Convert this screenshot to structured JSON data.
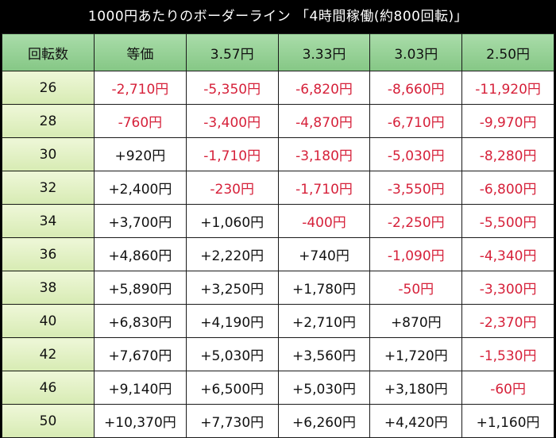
{
  "title": "1000円あたりのボーダーライン 「4時間稼働(約800回転)」",
  "colors": {
    "header_bg": "#98d298",
    "rotation_col_bg": "#e3f1c4",
    "negative": "#d6213a",
    "positive": "#111111"
  },
  "headers": [
    "回転数",
    "等価",
    "3.57円",
    "3.33円",
    "3.03円",
    "2.50円"
  ],
  "rows": [
    {
      "rot": "26",
      "cells": [
        "-2,710円",
        "-5,350円",
        "-6,820円",
        "-8,660円",
        "-11,920円"
      ]
    },
    {
      "rot": "28",
      "cells": [
        "-760円",
        "-3,400円",
        "-4,870円",
        "-6,710円",
        "-9,970円"
      ]
    },
    {
      "rot": "30",
      "cells": [
        "+920円",
        "-1,710円",
        "-3,180円",
        "-5,030円",
        "-8,280円"
      ]
    },
    {
      "rot": "32",
      "cells": [
        "+2,400円",
        "-230円",
        "-1,710円",
        "-3,550円",
        "-6,800円"
      ]
    },
    {
      "rot": "34",
      "cells": [
        "+3,700円",
        "+1,060円",
        "-400円",
        "-2,250円",
        "-5,500円"
      ]
    },
    {
      "rot": "36",
      "cells": [
        "+4,860円",
        "+2,220円",
        "+740円",
        "-1,090円",
        "-4,340円"
      ]
    },
    {
      "rot": "38",
      "cells": [
        "+5,890円",
        "+3,250円",
        "+1,780円",
        "-50円",
        "-3,300円"
      ]
    },
    {
      "rot": "40",
      "cells": [
        "+6,830円",
        "+4,190円",
        "+2,710円",
        "+870円",
        "-2,370円"
      ]
    },
    {
      "rot": "42",
      "cells": [
        "+7,670円",
        "+5,030円",
        "+3,560円",
        "+1,720円",
        "-1,530円"
      ]
    },
    {
      "rot": "46",
      "cells": [
        "+9,140円",
        "+6,500円",
        "+5,030円",
        "+3,180円",
        "-60円"
      ]
    },
    {
      "rot": "50",
      "cells": [
        "+10,370円",
        "+7,730円",
        "+6,260円",
        "+4,420円",
        "+1,160円"
      ]
    }
  ]
}
